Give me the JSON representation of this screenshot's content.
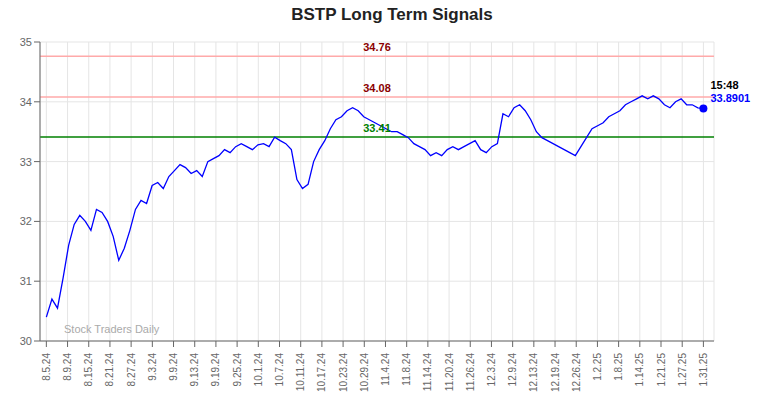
{
  "chart_data": {
    "type": "line",
    "title": "BSTP Long Term Signals",
    "color": "blue",
    "grid": true,
    "x": [
      0,
      0.262712,
      0.525424,
      0.788136,
      1.050847,
      1.313559,
      1.576271,
      1.838983,
      2.101695,
      2.364407,
      2.627119,
      2.889831,
      3.152542,
      3.415254,
      3.677966,
      3.940678,
      4.20339,
      4.466102,
      4.728814,
      4.991525,
      5.254237,
      5.516949,
      5.779661,
      6.042373,
      6.305085,
      6.567797,
      6.830508,
      7.09322,
      7.355932,
      7.618644,
      7.881356,
      8.144068,
      8.40678,
      8.669492,
      8.932203,
      9.194915,
      9.457627,
      9.720339,
      9.983051,
      10.245763,
      10.508475,
      10.771186,
      11.033898,
      11.29661,
      11.559322,
      11.822034,
      12.084746,
      12.347458,
      12.610169,
      12.872881,
      13.135593,
      13.398305,
      13.661017,
      13.923729,
      14.186441,
      14.449153,
      14.711864,
      14.974576,
      15.237288,
      15.5,
      15.762712,
      16.025424,
      16.288136,
      16.550847,
      16.813559,
      17.076271,
      17.338983,
      17.601695,
      17.864407,
      18.127119,
      18.389831,
      18.652542,
      18.915254,
      19.177966,
      19.440678,
      19.70339,
      19.966102,
      20.228814,
      20.491525,
      20.754237,
      21.016949,
      21.279661,
      21.542373,
      21.805085,
      22.067797,
      22.330508,
      22.59322,
      22.855932,
      23.118644,
      23.381356,
      23.644068,
      23.90678,
      24.169492,
      24.432203,
      24.694915,
      24.957627,
      25.220339,
      25.483051,
      25.745763,
      26.008475,
      26.271186,
      26.533898,
      26.79661,
      27.059322,
      27.322034,
      27.584746,
      27.847458,
      28.110169,
      28.372881,
      28.635593,
      28.898305,
      29.161017,
      29.423729,
      29.686441,
      29.949153,
      30.211864,
      30.474576,
      30.737288,
      31
    ],
    "values": [
      30.4,
      30.7,
      30.55,
      31.05,
      31.6,
      31.95,
      32.1,
      32.0,
      31.85,
      32.2,
      32.15,
      32.0,
      31.75,
      31.35,
      31.55,
      31.85,
      32.2,
      32.35,
      32.3,
      32.6,
      32.65,
      32.55,
      32.75,
      32.85,
      32.95,
      32.9,
      32.8,
      32.85,
      32.75,
      33.0,
      33.05,
      33.1,
      33.2,
      33.15,
      33.25,
      33.3,
      33.25,
      33.2,
      33.28,
      33.3,
      33.25,
      33.41,
      33.35,
      33.3,
      33.2,
      32.7,
      32.55,
      32.62,
      33.0,
      33.2,
      33.35,
      33.55,
      33.7,
      33.75,
      33.85,
      33.9,
      33.85,
      33.75,
      33.7,
      33.65,
      33.6,
      33.55,
      33.5,
      33.5,
      33.45,
      33.4,
      33.3,
      33.25,
      33.2,
      33.1,
      33.15,
      33.1,
      33.2,
      33.25,
      33.2,
      33.25,
      33.3,
      33.35,
      33.2,
      33.15,
      33.25,
      33.3,
      33.8,
      33.75,
      33.9,
      33.95,
      33.85,
      33.7,
      33.5,
      33.4,
      33.35,
      33.3,
      33.25,
      33.2,
      33.15,
      33.1,
      33.25,
      33.4,
      33.55,
      33.6,
      33.65,
      33.75,
      33.8,
      33.85,
      33.95,
      34.0,
      34.05,
      34.1,
      34.05,
      34.1,
      34.05,
      33.95,
      33.9,
      34.0,
      34.05,
      33.95,
      33.95,
      33.9,
      33.89
    ],
    "xlim": [
      -0.3,
      31.5
    ],
    "xticks": [
      {
        "value": 0,
        "label": "8.5.24"
      },
      {
        "value": 1,
        "label": "8.9.24"
      },
      {
        "value": 2,
        "label": "8.15.24"
      },
      {
        "value": 3,
        "label": "8.21.24"
      },
      {
        "value": 4,
        "label": "8.27.24"
      },
      {
        "value": 5,
        "label": "9.3.24"
      },
      {
        "value": 6,
        "label": "9.9.24"
      },
      {
        "value": 7,
        "label": "9.13.24"
      },
      {
        "value": 8,
        "label": "9.19.24"
      },
      {
        "value": 9,
        "label": "9.25.24"
      },
      {
        "value": 10,
        "label": "10.1.24"
      },
      {
        "value": 11,
        "label": "10.7.24"
      },
      {
        "value": 12,
        "label": "10.11.24"
      },
      {
        "value": 13,
        "label": "10.17.24"
      },
      {
        "value": 14,
        "label": "10.23.24"
      },
      {
        "value": 15,
        "label": "10.29.24"
      },
      {
        "value": 16,
        "label": "11.4.24"
      },
      {
        "value": 17,
        "label": "11.8.24"
      },
      {
        "value": 18,
        "label": "11.14.24"
      },
      {
        "value": 19,
        "label": "11.20.24"
      },
      {
        "value": 20,
        "label": "11.26.24"
      },
      {
        "value": 21,
        "label": "12.3.24"
      },
      {
        "value": 22,
        "label": "12.9.24"
      },
      {
        "value": 23,
        "label": "12.13.24"
      },
      {
        "value": 24,
        "label": "12.19.24"
      },
      {
        "value": 25,
        "label": "12.26.24"
      },
      {
        "value": 26,
        "label": "1.2.25"
      },
      {
        "value": 27,
        "label": "1.8.25"
      },
      {
        "value": 28,
        "label": "1.14.25"
      },
      {
        "value": 29,
        "label": "1.21.25"
      },
      {
        "value": 30,
        "label": "1.27.25"
      },
      {
        "value": 31,
        "label": "1.31.25"
      }
    ],
    "ylim": [
      30,
      35
    ],
    "yticks": [
      30,
      31,
      32,
      33,
      34,
      35
    ],
    "hlines": [
      {
        "value": 33.41,
        "color": "green",
        "label": "33.41",
        "label_color": "green"
      },
      {
        "value": 34.08,
        "color": "#ffaaaa",
        "label": "34.08",
        "label_color": "darkred"
      },
      {
        "value": 34.76,
        "color": "#ffaaaa",
        "label": "34.76",
        "label_color": "darkred"
      }
    ],
    "last_point": {
      "color": "blue",
      "labels": [
        {
          "text": "15:48",
          "color": "black"
        },
        {
          "text": "33.8901",
          "color": "blue"
        }
      ]
    },
    "watermark": {
      "text": "Stock Traders Daily",
      "color": "#aaaaaa"
    }
  }
}
